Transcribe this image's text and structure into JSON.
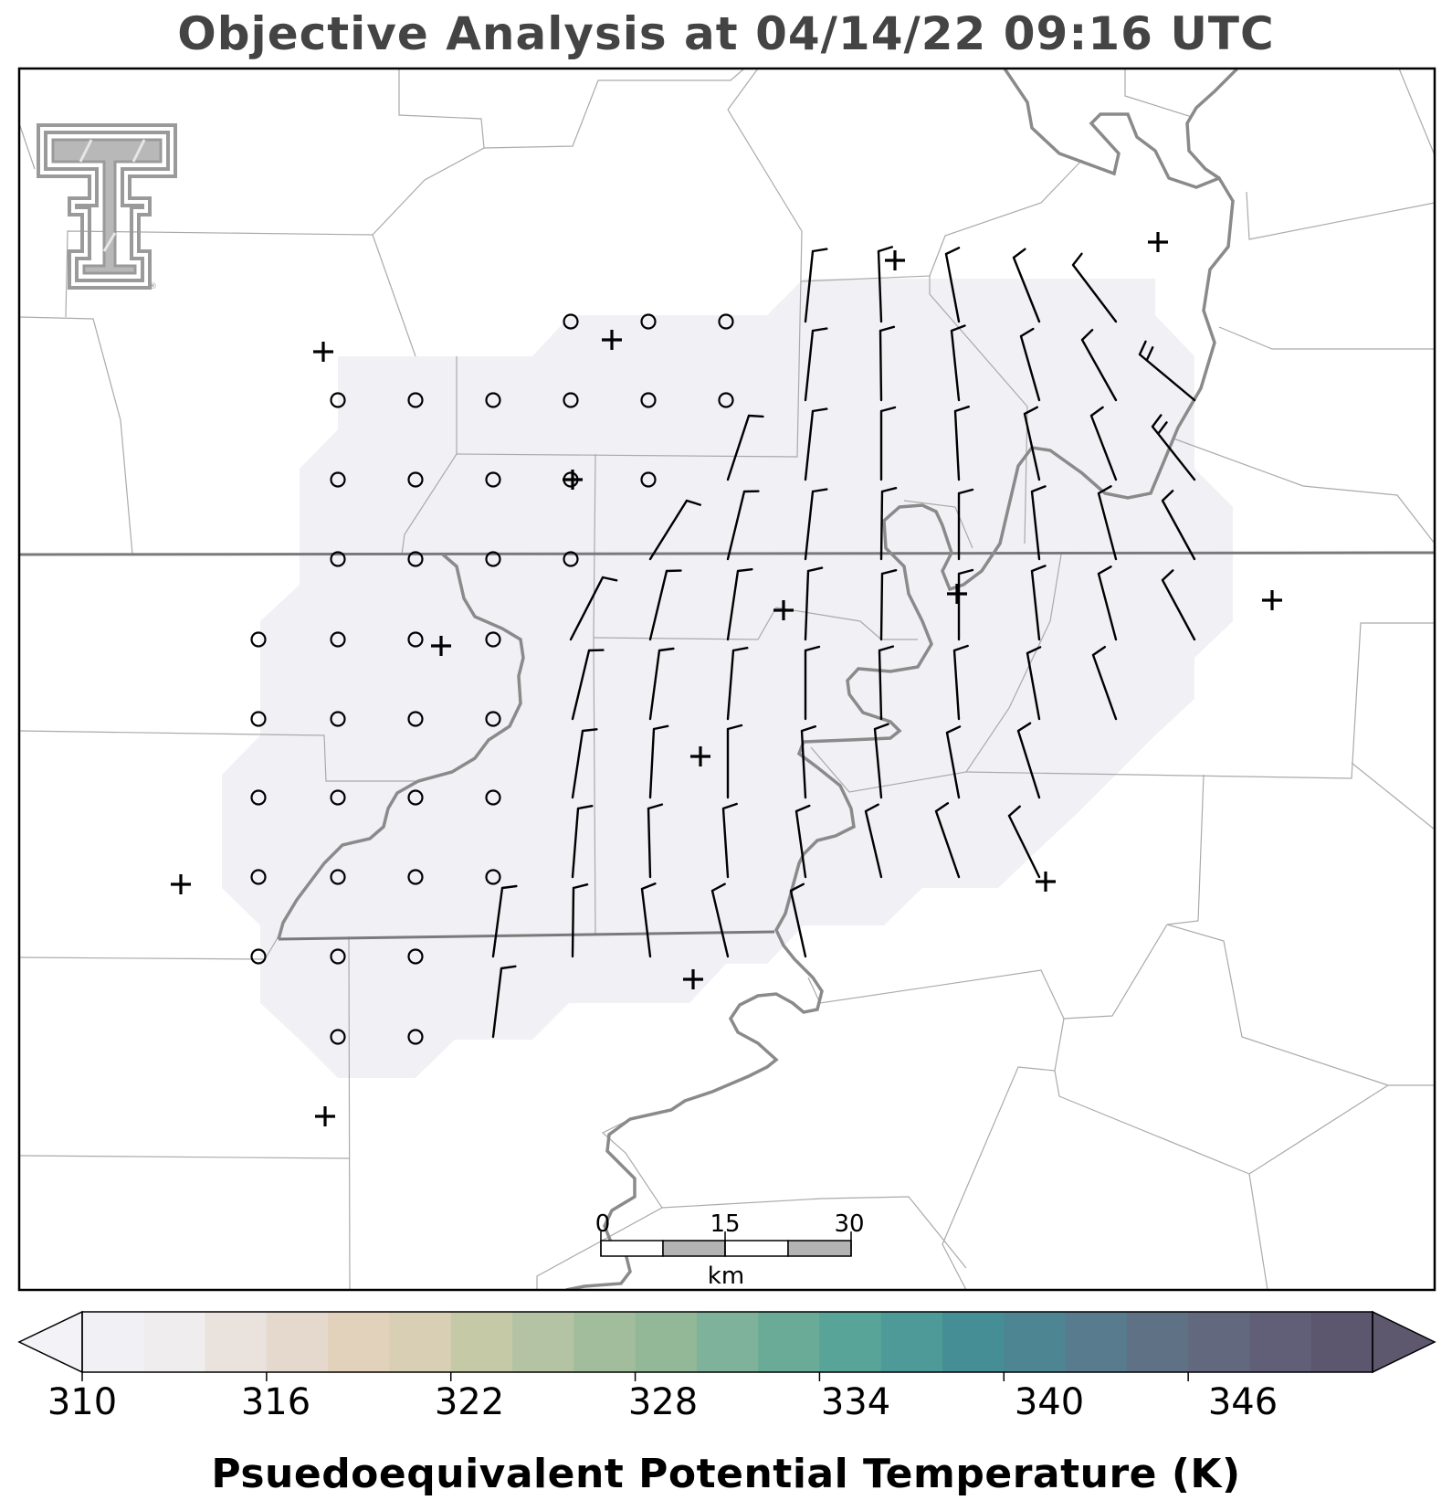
{
  "title": "Objective Analysis at 04/14/22 09:16 UTC",
  "colorbar": {
    "label": "Psuedoequivalent Potential Temperature (K)",
    "tick_labels": [
      "310",
      "316",
      "322",
      "328",
      "334",
      "340",
      "346"
    ],
    "min": 310,
    "max": 352,
    "step": 2,
    "colors": [
      "#f1f0f4",
      "#efedee",
      "#e9e2dd",
      "#e4d9cc",
      "#e2d2bb",
      "#d8cfb4",
      "#c6c9a6",
      "#b3c3a4",
      "#a2bd9c",
      "#92b898",
      "#7fb29a",
      "#6aab97",
      "#58a498",
      "#4d9a98",
      "#468e95",
      "#4d8593",
      "#587c8e",
      "#5f7285",
      "#62697f",
      "#615f77",
      "#5c566f"
    ],
    "under_color": "#f3f3f7",
    "over_color": "#5d586e"
  },
  "scalebar": {
    "tick_labels": [
      "0",
      "15",
      "30"
    ],
    "unit": "km"
  },
  "logo": "texas-tech-double-t-logo",
  "map_data": {
    "analysis_field_color": "#f1f1f5",
    "missing_station_marker": "plus",
    "calm_or_missing_wind_marker": "circle"
  }
}
